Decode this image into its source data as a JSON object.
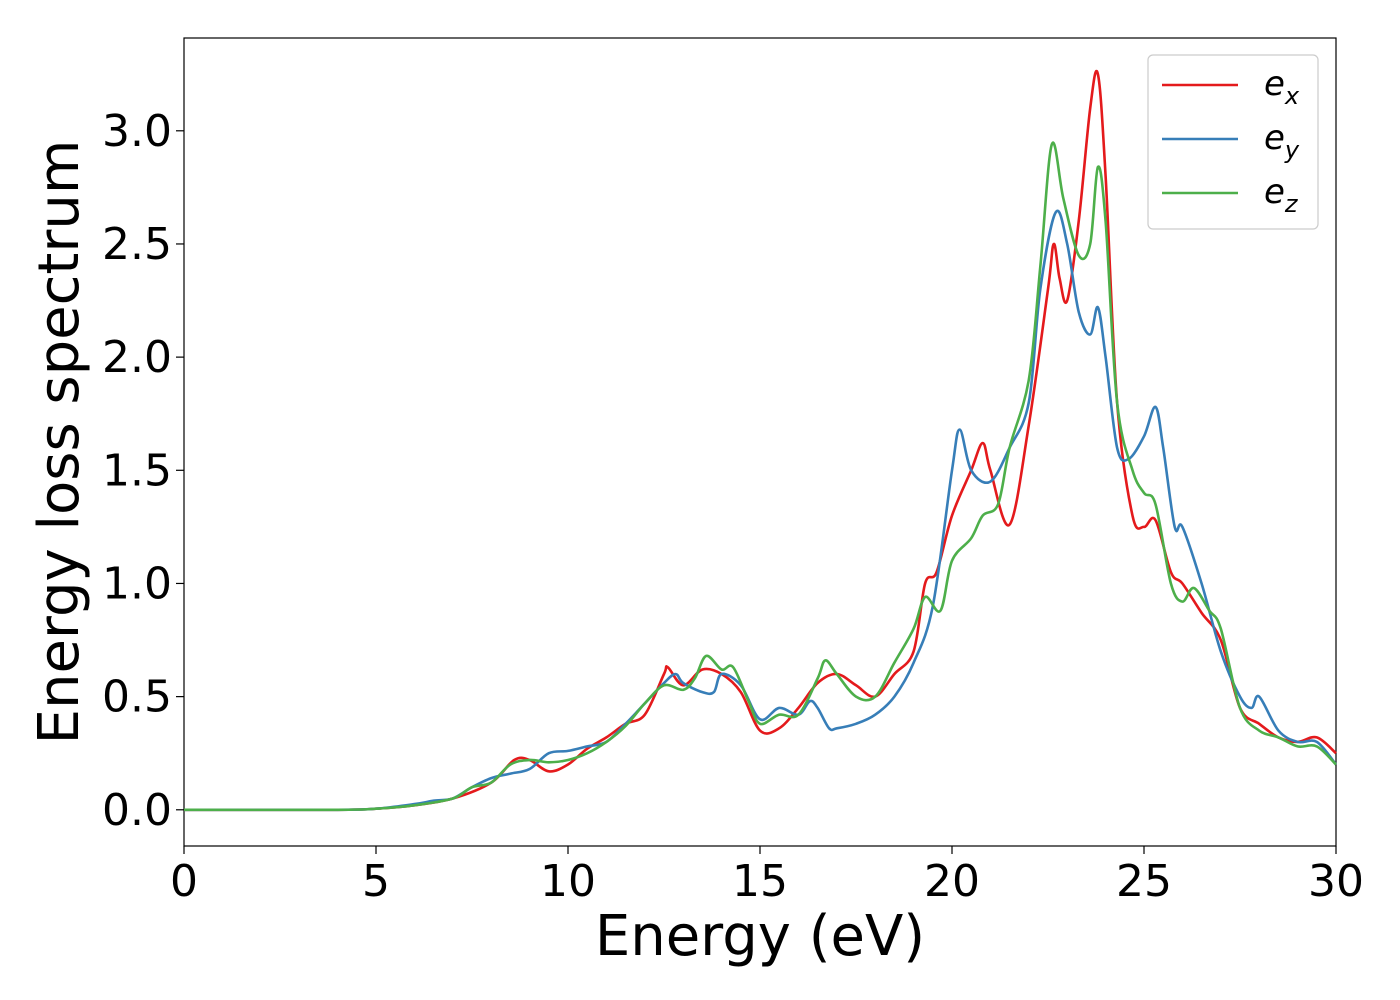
{
  "chart_data": {
    "type": "line",
    "title": "",
    "xlabel": "Energy (eV)",
    "ylabel": "Energy loss spectrum",
    "xlim": [
      0,
      30
    ],
    "ylim": [
      -0.16,
      3.41
    ],
    "xticks": [
      0,
      5,
      10,
      15,
      20,
      25,
      30
    ],
    "xtick_labels": [
      "0",
      "5",
      "10",
      "15",
      "20",
      "25",
      "30"
    ],
    "yticks": [
      0.0,
      0.5,
      1.0,
      1.5,
      2.0,
      2.5,
      3.0
    ],
    "ytick_labels": [
      "0.0",
      "0.5",
      "1.0",
      "1.5",
      "2.0",
      "2.5",
      "3.0"
    ],
    "grid": false,
    "legend_position": "top-right",
    "series": [
      {
        "name": "e_x",
        "label_base": "e",
        "label_sub": "x",
        "color": "#e41a1c",
        "points": [
          [
            0,
            0
          ],
          [
            4,
            0
          ],
          [
            5,
            0.005
          ],
          [
            6,
            0.02
          ],
          [
            7,
            0.05
          ],
          [
            8,
            0.12
          ],
          [
            8.6,
            0.22
          ],
          [
            9,
            0.22
          ],
          [
            9.5,
            0.17
          ],
          [
            10,
            0.2
          ],
          [
            10.5,
            0.27
          ],
          [
            11,
            0.32
          ],
          [
            11.5,
            0.38
          ],
          [
            12,
            0.42
          ],
          [
            12.5,
            0.6
          ],
          [
            12.6,
            0.63
          ],
          [
            13,
            0.55
          ],
          [
            13.5,
            0.62
          ],
          [
            14,
            0.6
          ],
          [
            14.5,
            0.52
          ],
          [
            15,
            0.35
          ],
          [
            15.5,
            0.36
          ],
          [
            16,
            0.45
          ],
          [
            16.5,
            0.56
          ],
          [
            17,
            0.6
          ],
          [
            17.5,
            0.55
          ],
          [
            18,
            0.5
          ],
          [
            18.5,
            0.6
          ],
          [
            19,
            0.7
          ],
          [
            19.3,
            1.0
          ],
          [
            19.6,
            1.05
          ],
          [
            20,
            1.3
          ],
          [
            20.5,
            1.5
          ],
          [
            20.8,
            1.62
          ],
          [
            21,
            1.5
          ],
          [
            21.5,
            1.26
          ],
          [
            22,
            1.7
          ],
          [
            22.5,
            2.3
          ],
          [
            22.65,
            2.5
          ],
          [
            22.8,
            2.35
          ],
          [
            23,
            2.25
          ],
          [
            23.3,
            2.6
          ],
          [
            23.6,
            3.1
          ],
          [
            23.8,
            3.25
          ],
          [
            24,
            2.8
          ],
          [
            24.3,
            1.8
          ],
          [
            24.7,
            1.3
          ],
          [
            25,
            1.25
          ],
          [
            25.3,
            1.28
          ],
          [
            25.7,
            1.05
          ],
          [
            26,
            1.0
          ],
          [
            26.5,
            0.87
          ],
          [
            27,
            0.75
          ],
          [
            27.5,
            0.45
          ],
          [
            28,
            0.38
          ],
          [
            28.5,
            0.32
          ],
          [
            29,
            0.3
          ],
          [
            29.5,
            0.32
          ],
          [
            30,
            0.25
          ]
        ]
      },
      {
        "name": "e_y",
        "label_base": "e",
        "label_sub": "y",
        "color": "#377eb8",
        "points": [
          [
            0,
            0
          ],
          [
            4,
            0
          ],
          [
            5,
            0.005
          ],
          [
            6,
            0.025
          ],
          [
            6.5,
            0.04
          ],
          [
            7,
            0.05
          ],
          [
            7.5,
            0.1
          ],
          [
            8,
            0.14
          ],
          [
            8.5,
            0.16
          ],
          [
            9,
            0.18
          ],
          [
            9.5,
            0.25
          ],
          [
            10,
            0.26
          ],
          [
            10.5,
            0.28
          ],
          [
            11,
            0.3
          ],
          [
            11.5,
            0.38
          ],
          [
            12,
            0.47
          ],
          [
            12.5,
            0.56
          ],
          [
            12.8,
            0.6
          ],
          [
            13,
            0.56
          ],
          [
            13.5,
            0.52
          ],
          [
            13.8,
            0.52
          ],
          [
            14,
            0.6
          ],
          [
            14.5,
            0.55
          ],
          [
            15,
            0.4
          ],
          [
            15.5,
            0.45
          ],
          [
            16,
            0.42
          ],
          [
            16.3,
            0.48
          ],
          [
            16.5,
            0.45
          ],
          [
            16.8,
            0.36
          ],
          [
            17,
            0.36
          ],
          [
            17.5,
            0.38
          ],
          [
            18,
            0.42
          ],
          [
            18.5,
            0.5
          ],
          [
            19,
            0.65
          ],
          [
            19.5,
            0.9
          ],
          [
            20,
            1.5
          ],
          [
            20.2,
            1.68
          ],
          [
            20.5,
            1.5
          ],
          [
            21,
            1.45
          ],
          [
            21.5,
            1.6
          ],
          [
            22,
            1.8
          ],
          [
            22.3,
            2.3
          ],
          [
            22.7,
            2.64
          ],
          [
            23,
            2.5
          ],
          [
            23.3,
            2.2
          ],
          [
            23.6,
            2.1
          ],
          [
            23.8,
            2.22
          ],
          [
            24,
            2.0
          ],
          [
            24.3,
            1.6
          ],
          [
            24.6,
            1.55
          ],
          [
            25,
            1.65
          ],
          [
            25.3,
            1.78
          ],
          [
            25.5,
            1.6
          ],
          [
            25.8,
            1.25
          ],
          [
            26,
            1.25
          ],
          [
            26.5,
            1.0
          ],
          [
            27,
            0.7
          ],
          [
            27.5,
            0.5
          ],
          [
            27.8,
            0.45
          ],
          [
            28,
            0.5
          ],
          [
            28.5,
            0.35
          ],
          [
            29,
            0.3
          ],
          [
            29.5,
            0.3
          ],
          [
            30,
            0.2
          ]
        ]
      },
      {
        "name": "e_z",
        "label_base": "e",
        "label_sub": "z",
        "color": "#4daf4a",
        "points": [
          [
            0,
            0
          ],
          [
            4,
            0
          ],
          [
            5,
            0.005
          ],
          [
            6,
            0.02
          ],
          [
            7,
            0.05
          ],
          [
            7.5,
            0.1
          ],
          [
            8,
            0.12
          ],
          [
            8.5,
            0.2
          ],
          [
            9,
            0.22
          ],
          [
            9.5,
            0.21
          ],
          [
            10,
            0.22
          ],
          [
            10.5,
            0.25
          ],
          [
            11,
            0.3
          ],
          [
            11.5,
            0.37
          ],
          [
            12,
            0.47
          ],
          [
            12.5,
            0.55
          ],
          [
            13,
            0.53
          ],
          [
            13.3,
            0.58
          ],
          [
            13.6,
            0.68
          ],
          [
            14,
            0.62
          ],
          [
            14.3,
            0.63
          ],
          [
            14.7,
            0.48
          ],
          [
            15,
            0.38
          ],
          [
            15.5,
            0.42
          ],
          [
            16,
            0.42
          ],
          [
            16.5,
            0.58
          ],
          [
            16.7,
            0.66
          ],
          [
            17,
            0.6
          ],
          [
            17.5,
            0.5
          ],
          [
            18,
            0.5
          ],
          [
            18.5,
            0.65
          ],
          [
            19,
            0.8
          ],
          [
            19.3,
            0.94
          ],
          [
            19.7,
            0.88
          ],
          [
            20,
            1.1
          ],
          [
            20.5,
            1.2
          ],
          [
            20.8,
            1.3
          ],
          [
            21.2,
            1.35
          ],
          [
            21.5,
            1.6
          ],
          [
            22,
            1.9
          ],
          [
            22.3,
            2.4
          ],
          [
            22.6,
            2.94
          ],
          [
            22.9,
            2.7
          ],
          [
            23.3,
            2.45
          ],
          [
            23.6,
            2.5
          ],
          [
            23.8,
            2.84
          ],
          [
            24,
            2.6
          ],
          [
            24.3,
            1.8
          ],
          [
            24.7,
            1.5
          ],
          [
            25,
            1.4
          ],
          [
            25.3,
            1.35
          ],
          [
            25.7,
            1.0
          ],
          [
            26,
            0.92
          ],
          [
            26.3,
            0.98
          ],
          [
            26.7,
            0.88
          ],
          [
            27,
            0.8
          ],
          [
            27.5,
            0.45
          ],
          [
            28,
            0.35
          ],
          [
            28.5,
            0.32
          ],
          [
            29,
            0.28
          ],
          [
            29.5,
            0.28
          ],
          [
            30,
            0.2
          ]
        ]
      }
    ]
  }
}
